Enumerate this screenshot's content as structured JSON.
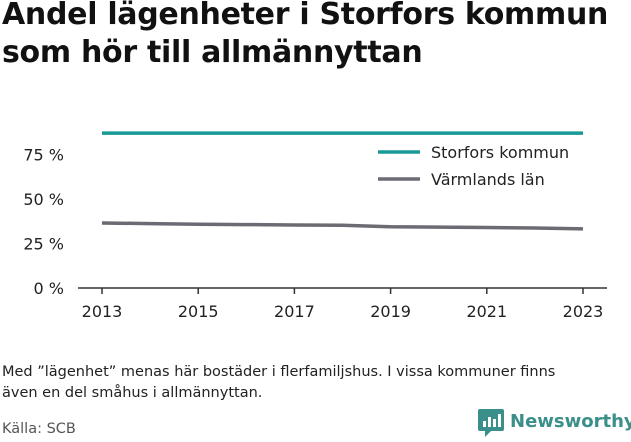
{
  "title_lines": [
    "Andel lägenheter i Storfors kommun",
    "som hör till allmännyttan"
  ],
  "note_lines": [
    "Med ”lägenhet” menas här bostäder i flerfamiljshus. I vissa kommuner finns",
    "även en del småhus i allmännyttan."
  ],
  "source": "Källa: SCB",
  "brand": "Newsworthy",
  "colors": {
    "storfors": "#1a9a97",
    "varmland": "#6b6b73",
    "axis": "#333333",
    "brand": "#3a8f8a"
  },
  "chart_data": {
    "type": "line",
    "x": [
      2013,
      2014,
      2015,
      2016,
      2017,
      2018,
      2019,
      2020,
      2021,
      2022,
      2023
    ],
    "x_ticks": [
      2013,
      2015,
      2017,
      2019,
      2021,
      2023
    ],
    "y_ticks": [
      0,
      25,
      50,
      75
    ],
    "y_tick_labels": [
      "0 %",
      "25 %",
      "50 %",
      "75 %"
    ],
    "xlim": [
      2013,
      2023
    ],
    "ylim": [
      0,
      100
    ],
    "grid": false,
    "legend_position": "top-right",
    "series": [
      {
        "name": "Storfors kommun",
        "color": "#1a9a97",
        "values": [
          87,
          87,
          87,
          87,
          87,
          87,
          87,
          87,
          87,
          87,
          87
        ]
      },
      {
        "name": "Värmlands län",
        "color": "#6b6b73",
        "values": [
          36.5,
          36.2,
          35.8,
          35.6,
          35.4,
          35.2,
          34.4,
          34.2,
          34.0,
          33.7,
          33.2
        ]
      }
    ]
  }
}
